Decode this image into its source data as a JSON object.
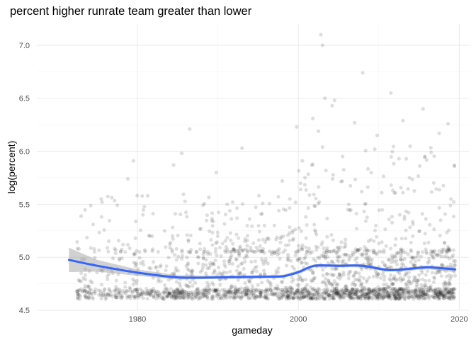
{
  "chart_data": {
    "type": "scatter",
    "title": "percent higher runrate team greater than lower",
    "xlabel": "gameday",
    "ylabel": "log(percent)",
    "xlim": [
      1967.5,
      2021.2
    ],
    "ylim": [
      4.5,
      7.2
    ],
    "x_ticks": [
      1980,
      2000,
      2020
    ],
    "x_tick_labels": [
      "1980",
      "2000",
      "2020"
    ],
    "y_ticks": [
      4.5,
      5.0,
      5.5,
      6.0,
      6.5,
      7.0
    ],
    "y_tick_labels": [
      "4.5",
      "5.0",
      "5.5",
      "6.0",
      "6.5",
      "7.0"
    ],
    "grid": true,
    "point_color": "#000000",
    "point_alpha": 0.13,
    "outlier_points": [
      {
        "x": 2002.8,
        "y": 7.1
      },
      {
        "x": 2003.0,
        "y": 7.0
      },
      {
        "x": 2008.0,
        "y": 6.74
      },
      {
        "x": 2011.5,
        "y": 6.55
      },
      {
        "x": 2003.3,
        "y": 6.5
      },
      {
        "x": 2004.5,
        "y": 6.48
      },
      {
        "x": 2004.2,
        "y": 6.43
      },
      {
        "x": 2015.5,
        "y": 6.4
      },
      {
        "x": 2001.8,
        "y": 6.31
      },
      {
        "x": 2013.0,
        "y": 6.29
      },
      {
        "x": 2018.6,
        "y": 6.26
      },
      {
        "x": 2007.0,
        "y": 6.27
      },
      {
        "x": 1986.5,
        "y": 6.21
      },
      {
        "x": 1999.8,
        "y": 6.23
      },
      {
        "x": 2002.5,
        "y": 6.19
      },
      {
        "x": 2009.8,
        "y": 6.15
      },
      {
        "x": 2017.5,
        "y": 6.17
      },
      {
        "x": 2003.0,
        "y": 6.04
      },
      {
        "x": 1993.0,
        "y": 6.03
      },
      {
        "x": 2009.5,
        "y": 6.02
      },
      {
        "x": 2016.5,
        "y": 5.99
      },
      {
        "x": 1985.5,
        "y": 5.98
      },
      {
        "x": 2005.5,
        "y": 5.95
      },
      {
        "x": 2012.5,
        "y": 5.93
      },
      {
        "x": 1979.5,
        "y": 5.91
      },
      {
        "x": 2000.5,
        "y": 5.91
      },
      {
        "x": 1984.5,
        "y": 5.87
      },
      {
        "x": 2019.4,
        "y": 5.86
      },
      {
        "x": 1989.8,
        "y": 5.8
      },
      {
        "x": 1978.8,
        "y": 5.74
      },
      {
        "x": 1998.0,
        "y": 5.72
      },
      {
        "x": 1975.5,
        "y": 5.55
      },
      {
        "x": 1975.6,
        "y": 5.52
      },
      {
        "x": 1977.5,
        "y": 5.49
      },
      {
        "x": 1974.5,
        "y": 5.31
      },
      {
        "x": 1973.5,
        "y": 4.73
      },
      {
        "x": 1972.5,
        "y": 4.68
      },
      {
        "x": 1973.0,
        "y": 4.7
      },
      {
        "x": 1974.0,
        "y": 4.72
      }
    ],
    "smooth_series": {
      "color": "#3366ff",
      "ribbon_color": "#999999",
      "ribbon_alpha": 0.45,
      "x": [
        1971.5,
        1975,
        1980,
        1985,
        1990,
        1995,
        1998,
        2000,
        2002,
        2005,
        2008,
        2011,
        2013,
        2016,
        2019.5
      ],
      "y": [
        4.975,
        4.92,
        4.855,
        4.81,
        4.81,
        4.815,
        4.82,
        4.86,
        4.92,
        4.92,
        4.92,
        4.88,
        4.885,
        4.905,
        4.885
      ],
      "lower": [
        4.86,
        4.865,
        4.825,
        4.79,
        4.795,
        4.8,
        4.805,
        4.845,
        4.905,
        4.907,
        4.905,
        4.865,
        4.87,
        4.888,
        4.858
      ],
      "upper": [
        5.09,
        4.975,
        4.885,
        4.83,
        4.825,
        4.83,
        4.835,
        4.875,
        4.935,
        4.933,
        4.935,
        4.895,
        4.9,
        4.922,
        4.912
      ]
    }
  }
}
